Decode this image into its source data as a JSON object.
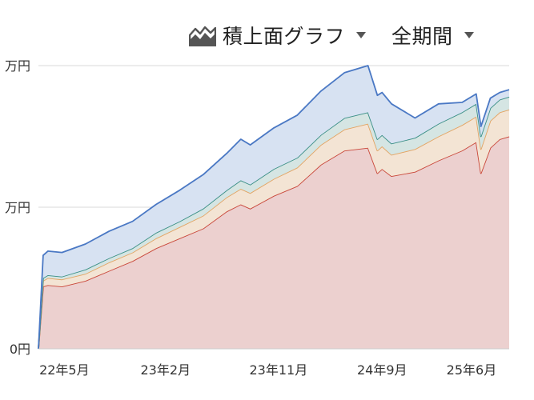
{
  "controls": {
    "chart_type_label": "積上面グラフ",
    "chart_type_icon": "stacked-area-chart-icon",
    "period_label": "全期間",
    "dropdown_icon": "caret-down-icon"
  },
  "chart_data": {
    "type": "area",
    "stacked": true,
    "title": "",
    "xlabel": "",
    "ylabel": "",
    "y_tick_labels": [
      "0円",
      "万円",
      "万円"
    ],
    "y_tick_positions": [
      0,
      1,
      2
    ],
    "ylim": [
      0,
      2
    ],
    "x_tick_labels": [
      "22年5月",
      "23年2月",
      "23年11月",
      "24年9月",
      "25年6月"
    ],
    "x_tick_positions": [
      0.055,
      0.27,
      0.51,
      0.73,
      0.92
    ],
    "grid": true,
    "legend": "none",
    "x": [
      0,
      0.01,
      0.02,
      0.05,
      0.1,
      0.15,
      0.2,
      0.25,
      0.3,
      0.35,
      0.4,
      0.43,
      0.45,
      0.5,
      0.55,
      0.6,
      0.65,
      0.7,
      0.72,
      0.73,
      0.75,
      0.8,
      0.85,
      0.9,
      0.93,
      0.94,
      0.96,
      0.98,
      1.0
    ],
    "series": [
      {
        "color": "#c9473a",
        "fill": "#ecd0cf",
        "values": [
          0.0,
          0.44,
          0.45,
          0.44,
          0.48,
          0.55,
          0.62,
          0.71,
          0.78,
          0.85,
          0.97,
          1.02,
          0.99,
          1.08,
          1.15,
          1.3,
          1.4,
          1.42,
          1.24,
          1.27,
          1.22,
          1.25,
          1.33,
          1.4,
          1.46,
          1.24,
          1.42,
          1.48,
          1.5
        ]
      },
      {
        "color": "#e3a463",
        "fill": "#f3e4d4",
        "values": [
          0.0,
          0.04,
          0.05,
          0.05,
          0.05,
          0.06,
          0.06,
          0.07,
          0.08,
          0.09,
          0.1,
          0.11,
          0.11,
          0.12,
          0.13,
          0.14,
          0.15,
          0.17,
          0.16,
          0.16,
          0.15,
          0.16,
          0.17,
          0.18,
          0.18,
          0.17,
          0.19,
          0.19,
          0.19
        ]
      },
      {
        "color": "#3a8f86",
        "fill": "#d5e5e3",
        "values": [
          0.0,
          0.02,
          0.02,
          0.02,
          0.03,
          0.03,
          0.03,
          0.04,
          0.04,
          0.05,
          0.05,
          0.06,
          0.06,
          0.07,
          0.07,
          0.07,
          0.08,
          0.08,
          0.08,
          0.08,
          0.08,
          0.08,
          0.09,
          0.09,
          0.09,
          0.09,
          0.09,
          0.09,
          0.09
        ]
      },
      {
        "color": "#4a78c4",
        "fill": "#d7e2f2",
        "values": [
          0.0,
          0.16,
          0.17,
          0.17,
          0.18,
          0.19,
          0.19,
          0.2,
          0.22,
          0.24,
          0.26,
          0.29,
          0.28,
          0.29,
          0.3,
          0.31,
          0.32,
          0.33,
          0.31,
          0.3,
          0.28,
          0.14,
          0.14,
          0.07,
          0.07,
          0.07,
          0.07,
          0.05,
          0.05
        ]
      }
    ]
  }
}
